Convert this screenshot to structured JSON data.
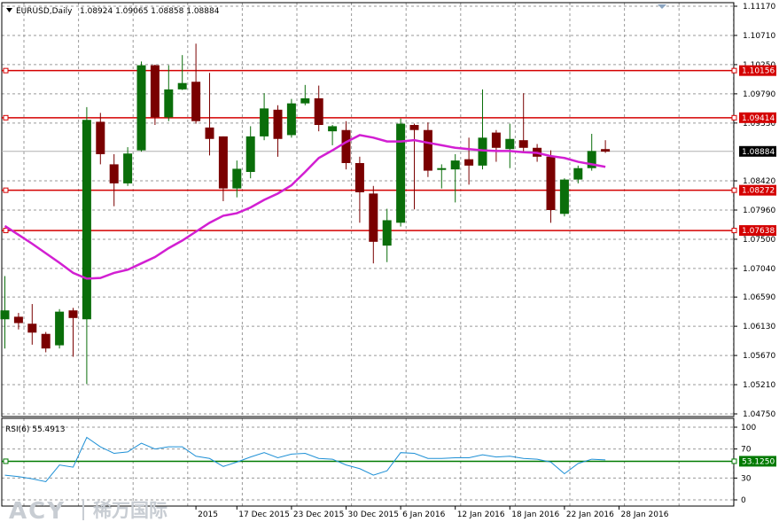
{
  "window": {
    "symbol_title": "EURUSD,Daily",
    "ohlc": "1.08924 1.09065 1.08858 1.08884"
  },
  "watermark": {
    "brand": "ACY",
    "brand_cn": "稀万国际"
  },
  "colors": {
    "bull": "#0a6e0a",
    "bear": "#7a0000",
    "ma": "#d21fd2",
    "rsi": "#1e90d6",
    "level": "#d40000",
    "rsi_level": "#007a00",
    "grid": "#9a9a9a"
  },
  "chart_data": {
    "type": "candlestick",
    "price_axis": {
      "min": 1.0475,
      "max": 1.1117,
      "ticks": [
        "1.11170",
        "1.10710",
        "1.10250",
        "1.09790",
        "1.09330",
        "1.08420",
        "1.07960",
        "1.07500",
        "1.07040",
        "1.06590",
        "1.06130",
        "1.05670",
        "1.05210",
        "1.04750"
      ]
    },
    "date_labels": [
      {
        "label": "2015",
        "bar": 14
      },
      {
        "label": "17 Dec 2015",
        "bar": 17
      },
      {
        "label": "23 Dec 2015",
        "bar": 21
      },
      {
        "label": "30 Dec 2015",
        "bar": 25
      },
      {
        "label": "6 Jan 2016",
        "bar": 29
      },
      {
        "label": "12 Jan 2016",
        "bar": 33
      },
      {
        "label": "18 Jan 2016",
        "bar": 37
      },
      {
        "label": "22 Jan 2016",
        "bar": 41
      },
      {
        "label": "28 Jan 2016",
        "bar": 45
      }
    ],
    "candles": [
      {
        "o": 1.0624,
        "h": 1.0692,
        "l": 1.0578,
        "c": 1.0638
      },
      {
        "o": 1.0628,
        "h": 1.0634,
        "l": 1.0608,
        "c": 1.0618
      },
      {
        "o": 1.0617,
        "h": 1.0648,
        "l": 1.0584,
        "c": 1.0603
      },
      {
        "o": 1.0601,
        "h": 1.0604,
        "l": 1.0572,
        "c": 1.0578
      },
      {
        "o": 1.0583,
        "h": 1.064,
        "l": 1.0578,
        "c": 1.0636
      },
      {
        "o": 1.0638,
        "h": 1.0642,
        "l": 1.0565,
        "c": 1.0626
      },
      {
        "o": 1.0624,
        "h": 1.0958,
        "l": 1.0522,
        "c": 1.0938
      },
      {
        "o": 1.0935,
        "h": 1.0949,
        "l": 1.0868,
        "c": 1.0884
      },
      {
        "o": 1.0868,
        "h": 1.0884,
        "l": 1.0802,
        "c": 1.0838
      },
      {
        "o": 1.0838,
        "h": 1.0895,
        "l": 1.0834,
        "c": 1.0885
      },
      {
        "o": 1.089,
        "h": 1.103,
        "l": 1.0888,
        "c": 1.1024
      },
      {
        "o": 1.1024,
        "h": 1.1025,
        "l": 1.093,
        "c": 1.0942
      },
      {
        "o": 1.0942,
        "h": 1.1024,
        "l": 1.0936,
        "c": 1.0986
      },
      {
        "o": 1.0986,
        "h": 1.104,
        "l": 1.0985,
        "c": 1.0996
      },
      {
        "o": 1.0998,
        "h": 1.1058,
        "l": 1.0932,
        "c": 1.0936
      },
      {
        "o": 1.0926,
        "h": 1.1012,
        "l": 1.0882,
        "c": 1.0908
      },
      {
        "o": 1.0912,
        "h": 1.0912,
        "l": 1.081,
        "c": 1.083
      },
      {
        "o": 1.083,
        "h": 1.0874,
        "l": 1.0816,
        "c": 1.0861
      },
      {
        "o": 1.0856,
        "h": 1.0928,
        "l": 1.0846,
        "c": 1.0912
      },
      {
        "o": 1.0912,
        "h": 1.098,
        "l": 1.0906,
        "c": 1.0956
      },
      {
        "o": 1.0954,
        "h": 1.0961,
        "l": 1.088,
        "c": 1.0908
      },
      {
        "o": 1.0914,
        "h": 1.0971,
        "l": 1.091,
        "c": 1.0964
      },
      {
        "o": 1.0964,
        "h": 1.0993,
        "l": 1.0961,
        "c": 1.0972
      },
      {
        "o": 1.0972,
        "h": 1.0992,
        "l": 1.092,
        "c": 1.093
      },
      {
        "o": 1.092,
        "h": 1.093,
        "l": 1.0898,
        "c": 1.0928
      },
      {
        "o": 1.0922,
        "h": 1.0936,
        "l": 1.086,
        "c": 1.087
      },
      {
        "o": 1.087,
        "h": 1.088,
        "l": 1.0776,
        "c": 1.0824
      },
      {
        "o": 1.0822,
        "h": 1.0834,
        "l": 1.0712,
        "c": 1.0746
      },
      {
        "o": 1.074,
        "h": 1.0798,
        "l": 1.0714,
        "c": 1.078
      },
      {
        "o": 1.0776,
        "h": 1.094,
        "l": 1.077,
        "c": 1.0932
      },
      {
        "o": 1.093,
        "h": 1.0932,
        "l": 1.0797,
        "c": 1.0922
      },
      {
        "o": 1.0922,
        "h": 1.0934,
        "l": 1.0848,
        "c": 1.0858
      },
      {
        "o": 1.086,
        "h": 1.0868,
        "l": 1.083,
        "c": 1.0862
      },
      {
        "o": 1.086,
        "h": 1.0884,
        "l": 1.0808,
        "c": 1.0874
      },
      {
        "o": 1.0876,
        "h": 1.091,
        "l": 1.0836,
        "c": 1.0866
      },
      {
        "o": 1.0866,
        "h": 1.0986,
        "l": 1.086,
        "c": 1.091
      },
      {
        "o": 1.0918,
        "h": 1.0922,
        "l": 1.0872,
        "c": 1.0894
      },
      {
        "o": 1.0892,
        "h": 1.0932,
        "l": 1.0862,
        "c": 1.0908
      },
      {
        "o": 1.0906,
        "h": 1.098,
        "l": 1.0888,
        "c": 1.0894
      },
      {
        "o": 1.0894,
        "h": 1.09,
        "l": 1.0872,
        "c": 1.088
      },
      {
        "o": 1.088,
        "h": 1.089,
        "l": 1.0776,
        "c": 1.0796
      },
      {
        "o": 1.079,
        "h": 1.0846,
        "l": 1.0786,
        "c": 1.0844
      },
      {
        "o": 1.0844,
        "h": 1.0866,
        "l": 1.0838,
        "c": 1.0862
      },
      {
        "o": 1.0862,
        "h": 1.0916,
        "l": 1.0858,
        "c": 1.0889
      },
      {
        "o": 1.0892,
        "h": 1.0906,
        "l": 1.0886,
        "c": 1.0888
      }
    ],
    "ma_line": [
      1.0771,
      1.0757,
      1.0743,
      1.0728,
      1.0713,
      1.0697,
      1.0688,
      1.0689,
      1.0697,
      1.0702,
      1.0712,
      1.0722,
      1.0736,
      1.0748,
      1.0762,
      1.0776,
      1.0787,
      1.0791,
      1.08,
      1.0812,
      1.0822,
      1.0835,
      1.0856,
      1.0878,
      1.089,
      1.0903,
      1.0914,
      1.091,
      1.0904,
      1.0904,
      1.0906,
      1.0902,
      1.0898,
      1.0894,
      1.0892,
      1.089,
      1.0889,
      1.0889,
      1.0887,
      1.0886,
      1.0881,
      1.0878,
      1.0872,
      1.0868,
      1.0864
    ],
    "horizontal_levels": [
      {
        "value": 1.10156,
        "label": "1.10156"
      },
      {
        "value": 1.09414,
        "label": "1.09414"
      },
      {
        "value": 1.08272,
        "label": "1.08272"
      },
      {
        "value": 1.07638,
        "label": "1.07638"
      }
    ],
    "current_price": {
      "value": 1.08884,
      "label": "1.08884"
    },
    "rsi": {
      "title": "RSI(6) 55.4913",
      "ticks": [
        "100",
        "70",
        "30",
        "0"
      ],
      "range": [
        0,
        100
      ],
      "level": {
        "value": 53.125,
        "label": "53.1250"
      },
      "values": [
        34,
        32,
        29,
        25,
        48,
        45,
        86,
        73,
        64,
        66,
        78,
        70,
        73,
        73,
        60,
        57,
        46,
        52,
        59,
        65,
        58,
        63,
        64,
        57,
        56,
        48,
        43,
        34,
        40,
        65,
        64,
        57,
        57,
        58,
        58,
        62,
        59,
        60,
        57,
        56,
        52,
        36,
        50,
        56,
        55
      ]
    }
  }
}
